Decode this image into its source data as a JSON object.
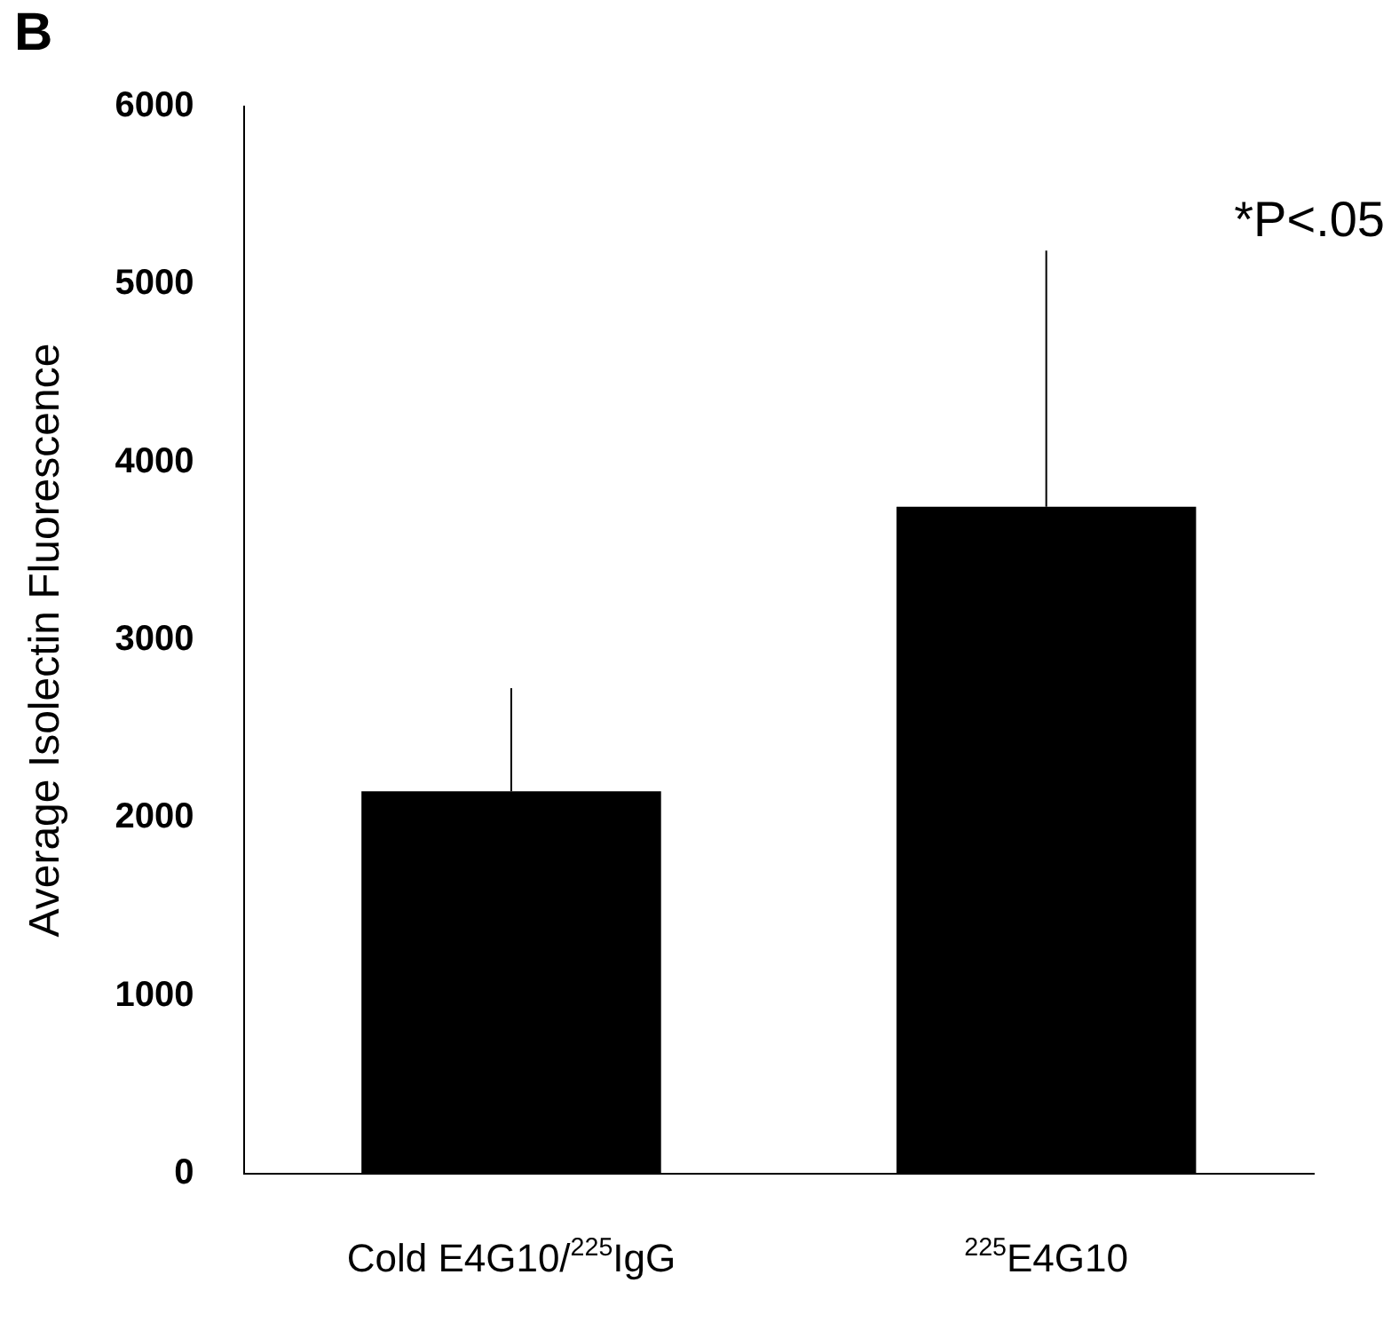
{
  "chart_data": {
    "type": "bar",
    "title": "B",
    "ylabel": "Average Isolectin Fluorescence",
    "categories": [
      "Cold E4G10/$^{225}$IgG",
      "$^{225}$E4G10"
    ],
    "values": [
      2150,
      3750
    ],
    "color": "#000000",
    "errors": [
      [
        2150,
        2730
      ],
      [
        3750,
        5190
      ]
    ],
    "ylim": [
      0,
      6000
    ],
    "yticks": [
      0,
      1000,
      2000,
      3000,
      4000,
      5000,
      6000
    ],
    "grid": false,
    "legend": false,
    "annotations": [
      "*P<.05"
    ]
  }
}
